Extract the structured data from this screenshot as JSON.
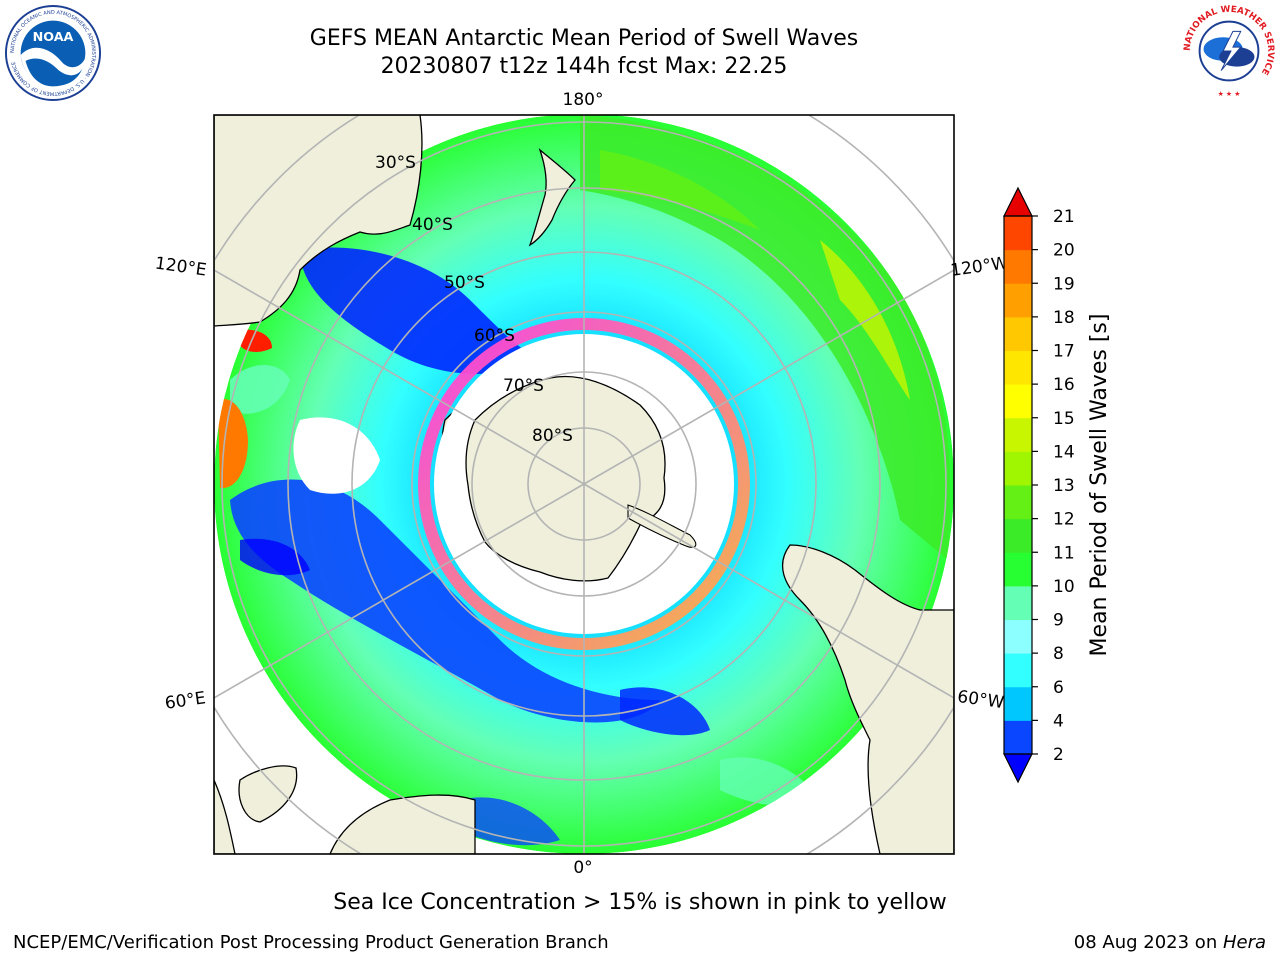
{
  "header": {
    "title_line1": "GEFS MEAN Antarctic Mean Period of Swell Waves",
    "title_line2": "20230807 t12z 144h fcst   Max: 22.25"
  },
  "logos": {
    "noaa_text": "NOAA",
    "noaa_ring_text": "NATIONAL OCEANIC AND ATMOSPHERIC ADMINISTRATION · U.S. DEPARTMENT OF COMMERCE",
    "nws_ring_text": "NATIONAL WEATHER SERVICE"
  },
  "map": {
    "projection": "south-polar-stereographic",
    "latitude_labels": [
      "30°S",
      "40°S",
      "50°S",
      "60°S",
      "70°S",
      "80°S"
    ],
    "longitude_labels": {
      "top": "180°",
      "bottom": "0°",
      "upper_left": "120°E",
      "lower_left": "60°E",
      "upper_right": "120°W",
      "lower_right": "60°W"
    },
    "colors": {
      "land": "#efefdc",
      "sea_ice_low": "#ff3ce6",
      "sea_ice_high": "#ffb43c",
      "grid": "#b4b4b4"
    }
  },
  "colorbar": {
    "label": "Mean Period of Swell Waves [s]",
    "ticks": [
      "2",
      "4",
      "6",
      "8",
      "9",
      "10",
      "11",
      "12",
      "13",
      "14",
      "15",
      "16",
      "17",
      "18",
      "19",
      "20",
      "21"
    ],
    "colors": [
      "#0a46ff",
      "#00c8ff",
      "#32ffff",
      "#8cffff",
      "#64ffb4",
      "#28ff32",
      "#3ceb28",
      "#64f014",
      "#a0f500",
      "#c8f500",
      "#ffff00",
      "#ffe600",
      "#ffc800",
      "#ffa000",
      "#ff7800",
      "#ff4600",
      "#ff1e00"
    ],
    "under_color": "#0000ff",
    "over_color": "#e60000"
  },
  "note": "Sea Ice Concentration > 15% is shown in pink to yellow",
  "footer": {
    "left": "NCEP/EMC/Verification Post Processing Product Generation Branch",
    "right_date": "08 Aug 2023 on ",
    "right_host": "Hera"
  }
}
